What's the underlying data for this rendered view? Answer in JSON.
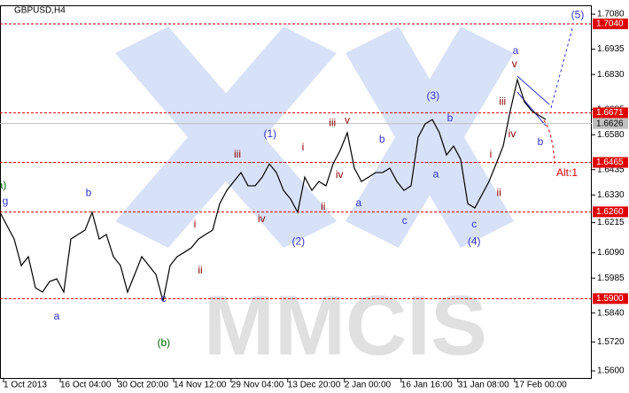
{
  "chart_data": {
    "type": "line",
    "title": "GBPUSD,H4",
    "watermark": "MMCIS",
    "color": "#000000",
    "xlim": [
      0,
      83.5
    ],
    "ylim": [
      1.5567,
      1.7117
    ],
    "x": [
      0,
      1,
      2,
      3,
      4,
      5,
      6,
      7,
      8,
      9,
      10,
      11,
      12,
      13,
      14,
      15,
      16,
      17,
      18,
      19,
      20,
      21,
      22,
      23,
      24,
      25,
      26,
      27,
      28,
      29,
      30,
      31,
      32,
      33,
      34,
      35,
      36,
      37,
      38,
      39,
      40,
      41,
      42,
      43,
      44,
      45,
      46,
      47,
      48,
      49,
      50,
      51,
      52,
      53,
      54,
      55,
      56,
      57,
      58,
      59,
      60,
      61,
      62,
      63,
      64,
      65,
      66,
      67,
      68,
      69,
      70,
      71,
      72,
      73,
      74,
      75,
      76,
      77
    ],
    "values": [
      1.6258,
      1.6202,
      1.6147,
      1.6037,
      1.6074,
      1.5945,
      1.5927,
      1.5971,
      1.5982,
      1.5927,
      1.6147,
      1.6166,
      1.6184,
      1.6258,
      1.6147,
      1.6166,
      1.6074,
      1.6037,
      1.5927,
      1.6,
      1.6074,
      1.6037,
      1.6,
      1.589,
      1.6037,
      1.6074,
      1.6092,
      1.6111,
      1.6147,
      1.6166,
      1.6184,
      1.6294,
      1.6349,
      1.6386,
      1.6423,
      1.6368,
      1.6368,
      1.6404,
      1.6459,
      1.6423,
      1.6349,
      1.6313,
      1.6258,
      1.6404,
      1.6349,
      1.6386,
      1.6368,
      1.6459,
      1.6515,
      1.6588,
      1.6441,
      1.6386,
      1.6404,
      1.6423,
      1.6423,
      1.6441,
      1.6386,
      1.6349,
      1.6368,
      1.657,
      1.6625,
      1.6643,
      1.6588,
      1.6496,
      1.6533,
      1.6478,
      1.6294,
      1.6276,
      1.6331,
      1.6386,
      1.6459,
      1.6533,
      1.668,
      1.6808,
      1.6716,
      1.668,
      1.6661,
      1.6643
    ],
    "yticks": [
      {
        "value": 1.708,
        "label": "1.7080"
      },
      1.6935,
      {
        "value": 1.683,
        "label": "1.6830"
      },
      1.6685,
      {
        "value": 1.658,
        "label": "1.6580"
      },
      1.6435,
      {
        "value": 1.633,
        "label": "1.6330"
      },
      1.6215,
      {
        "value": 1.609,
        "label": "1.6090"
      },
      1.5985,
      {
        "value": 1.584,
        "label": "1.5840"
      },
      {
        "value": 1.572,
        "label": "1.5720"
      },
      {
        "value": 1.56,
        "label": "1.5600"
      }
    ],
    "xticks": [
      {
        "value": 0.5,
        "label": "1 Oct 2013"
      },
      {
        "value": 8.5,
        "label": "16 Oct 04:00"
      },
      {
        "value": 16.6,
        "label": "30 Oct 20:00"
      },
      {
        "value": 24.5,
        "label": "14 Nov 12:00"
      },
      {
        "value": 32.6,
        "label": "29 Nov 04:00"
      },
      {
        "value": 40.6,
        "label": "13 Dec 20:00"
      },
      {
        "value": 48.6,
        "label": "2 Jan 00:00"
      },
      {
        "value": 56.6,
        "label": "16 Jan 16:00"
      },
      {
        "value": 64.6,
        "label": "31 Jan 08:00"
      },
      {
        "value": 72.6,
        "label": "17 Feb 00:00"
      }
    ],
    "levels": [
      {
        "value": 1.704,
        "label": "1.7040"
      },
      {
        "value": 1.6671,
        "label": "1.6671"
      },
      {
        "value": 1.6465,
        "label": "1.6465"
      },
      {
        "value": 1.626,
        "label": "1.6260"
      },
      {
        "value": 1.59,
        "label": "1.5900"
      }
    ],
    "level_color": "#e00000",
    "current_price": {
      "value": 1.6626,
      "label": "1.6626"
    },
    "annotations": [
      {
        "text": "a)",
        "x": 0.25,
        "y": 1.6368,
        "color": "#006400"
      },
      {
        "text": "g",
        "x": 0.75,
        "y": 1.6302,
        "color": "#3333cc"
      },
      {
        "text": "b",
        "x": 12.5,
        "y": 1.6338,
        "color": "#3333cc"
      },
      {
        "text": "a",
        "x": 8,
        "y": 1.5824,
        "color": "#3333cc"
      },
      {
        "text": "c",
        "x": 23.1,
        "y": 1.5898,
        "color": "#3333cc"
      },
      {
        "text": "(b)",
        "x": 23.1,
        "y": 1.5714,
        "color": "#006400"
      },
      {
        "text": "i",
        "x": 27.5,
        "y": 1.6206,
        "color": "#8b0000"
      },
      {
        "text": "ii",
        "x": 28.25,
        "y": 1.6015,
        "color": "#8b0000"
      },
      {
        "text": "iii",
        "x": 33.5,
        "y": 1.6496,
        "color": "#8b0000"
      },
      {
        "text": "iv",
        "x": 36.9,
        "y": 1.6228,
        "color": "#8b0000"
      },
      {
        "text": "(1)",
        "x": 38.1,
        "y": 1.6581,
        "color": "#3333cc"
      },
      {
        "text": "i",
        "x": 42.75,
        "y": 1.6526,
        "color": "#8b0000"
      },
      {
        "text": "ii",
        "x": 45.6,
        "y": 1.628,
        "color": "#8b0000"
      },
      {
        "text": "(2)",
        "x": 42.1,
        "y": 1.6136,
        "color": "#3333cc"
      },
      {
        "text": "iii",
        "x": 46.9,
        "y": 1.6628,
        "color": "#8b0000"
      },
      {
        "text": "v",
        "x": 49,
        "y": 1.6639,
        "color": "#8b0000"
      },
      {
        "text": "iv",
        "x": 47.9,
        "y": 1.6412,
        "color": "#8b0000"
      },
      {
        "text": "a",
        "x": 50.6,
        "y": 1.6294,
        "color": "#3333cc"
      },
      {
        "text": "b",
        "x": 53.9,
        "y": 1.6559,
        "color": "#3333cc"
      },
      {
        "text": "c",
        "x": 57.1,
        "y": 1.6221,
        "color": "#3333cc"
      },
      {
        "text": "(3)",
        "x": 61.1,
        "y": 1.6739,
        "color": "#3333cc"
      },
      {
        "text": "b",
        "x": 63.5,
        "y": 1.6647,
        "color": "#3333cc"
      },
      {
        "text": "a",
        "x": 61.5,
        "y": 1.6415,
        "color": "#3333cc"
      },
      {
        "text": "c",
        "x": 66.9,
        "y": 1.6206,
        "color": "#3333cc"
      },
      {
        "text": "(4)",
        "x": 66.9,
        "y": 1.6136,
        "color": "#3333cc"
      },
      {
        "text": "i",
        "x": 69.25,
        "y": 1.6496,
        "color": "#8b0000"
      },
      {
        "text": "ii",
        "x": 70.4,
        "y": 1.6338,
        "color": "#8b0000"
      },
      {
        "text": "iii",
        "x": 70.9,
        "y": 1.6716,
        "color": "#8b0000"
      },
      {
        "text": "iv",
        "x": 72.25,
        "y": 1.6581,
        "color": "#8b0000"
      },
      {
        "text": "v",
        "x": 72.6,
        "y": 1.6871,
        "color": "#8b0000"
      },
      {
        "text": "a",
        "x": 72.75,
        "y": 1.6926,
        "color": "#3333cc"
      },
      {
        "text": "b",
        "x": 76.25,
        "y": 1.6548,
        "color": "#3333cc"
      },
      {
        "text": "(5)",
        "x": 81.5,
        "y": 1.7076,
        "color": "#3333cc"
      },
      {
        "text": "Alt:1",
        "x": 80,
        "y": 1.6419,
        "color": "#e00000"
      }
    ]
  }
}
